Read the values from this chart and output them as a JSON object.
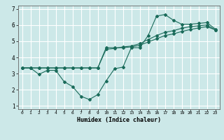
{
  "title": "",
  "xlabel": "Humidex (Indice chaleur)",
  "bg_color": "#cce8e8",
  "grid_color": "#ffffff",
  "line_color": "#1a6b5a",
  "xlim": [
    -0.5,
    23.5
  ],
  "ylim": [
    0.8,
    7.2
  ],
  "xticks": [
    0,
    1,
    2,
    3,
    4,
    5,
    6,
    7,
    8,
    9,
    10,
    11,
    12,
    13,
    14,
    15,
    16,
    17,
    18,
    19,
    20,
    21,
    22,
    23
  ],
  "yticks": [
    1,
    2,
    3,
    4,
    5,
    6,
    7
  ],
  "series1_x": [
    0,
    1,
    2,
    3,
    4,
    5,
    6,
    7,
    8,
    9,
    10,
    11,
    12,
    13,
    14,
    15,
    16,
    17,
    18,
    19,
    20,
    21,
    22,
    23
  ],
  "series1_y": [
    3.35,
    3.35,
    2.95,
    3.2,
    3.2,
    2.5,
    2.2,
    1.6,
    1.4,
    1.7,
    2.55,
    3.3,
    3.4,
    4.6,
    4.6,
    5.35,
    6.55,
    6.65,
    6.3,
    6.05,
    6.05,
    6.1,
    6.15,
    5.75
  ],
  "series2_x": [
    0,
    1,
    2,
    3,
    4,
    5,
    6,
    7,
    8,
    9,
    10,
    11,
    12,
    13,
    14,
    15,
    16,
    17,
    18,
    19,
    20,
    21,
    22,
    23
  ],
  "series2_y": [
    3.35,
    3.35,
    3.35,
    3.35,
    3.35,
    3.35,
    3.35,
    3.35,
    3.35,
    3.35,
    4.5,
    4.55,
    4.65,
    4.7,
    4.85,
    5.1,
    5.35,
    5.55,
    5.65,
    5.8,
    5.9,
    5.95,
    6.0,
    5.7
  ],
  "series3_x": [
    0,
    1,
    2,
    3,
    4,
    5,
    6,
    7,
    8,
    9,
    10,
    11,
    12,
    13,
    14,
    15,
    16,
    17,
    18,
    19,
    20,
    21,
    22,
    23
  ],
  "series3_y": [
    3.35,
    3.35,
    3.35,
    3.35,
    3.35,
    3.35,
    3.35,
    3.35,
    3.35,
    3.35,
    4.6,
    4.6,
    4.6,
    4.65,
    4.75,
    4.95,
    5.15,
    5.35,
    5.45,
    5.6,
    5.72,
    5.82,
    5.9,
    5.7
  ]
}
